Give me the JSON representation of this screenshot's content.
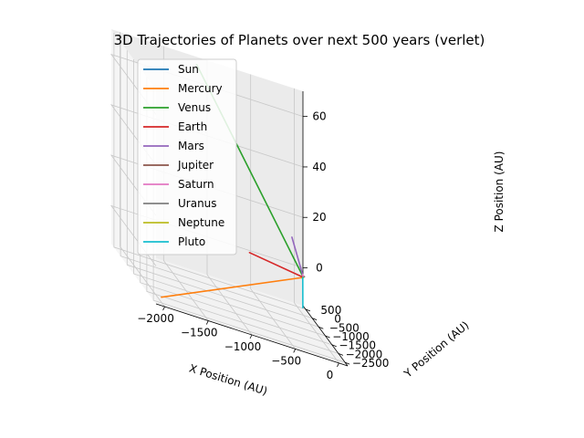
{
  "chart_data": {
    "type": "line",
    "projection": "3d",
    "title": "3D Trajectories of Planets over next 500 years (verlet)",
    "xlabel": "X Position (AU)",
    "ylabel": "Y Position (AU)",
    "zlabel": "Z Position (AU)",
    "xlim": [
      -2100,
      100
    ],
    "ylim": [
      -2700,
      700
    ],
    "zlim": [
      -15,
      70
    ],
    "xticks": [
      -2000,
      -1500,
      -1000,
      -500,
      0
    ],
    "xtick_labels": [
      "−2000",
      "−1500",
      "−1000",
      "−500",
      "0"
    ],
    "yticks": [
      -2500,
      -2000,
      -1500,
      -1000,
      -500,
      0,
      500
    ],
    "ytick_labels": [
      "−2500",
      "−2000",
      "−1500",
      "−1000",
      "−500",
      "0",
      "500"
    ],
    "zticks": [
      0,
      20,
      40,
      60
    ],
    "ztick_labels": [
      "0",
      "20",
      "40",
      "60"
    ],
    "grid": true,
    "legend_position": "upper-left",
    "series": [
      {
        "name": "Sun",
        "color": "#1f77b4",
        "points": [
          [
            0,
            0,
            0
          ],
          [
            0,
            0,
            0
          ]
        ]
      },
      {
        "name": "Mercury",
        "color": "#ff7f0e",
        "points": [
          [
            0,
            0,
            0
          ],
          [
            -2000,
            -2450,
            -13
          ]
        ]
      },
      {
        "name": "Venus",
        "color": "#2ca02c",
        "points": [
          [
            0,
            0,
            0
          ],
          [
            -1150,
            500,
            68
          ]
        ]
      },
      {
        "name": "Earth",
        "color": "#d62728",
        "points": [
          [
            0,
            0,
            0
          ],
          [
            -650,
            -200,
            4
          ]
        ]
      },
      {
        "name": "Mars",
        "color": "#9467bd",
        "points": [
          [
            0,
            0,
            0
          ],
          [
            -90,
            280,
            13
          ]
        ]
      },
      {
        "name": "Jupiter",
        "color": "#8c564b",
        "points": [
          [
            0,
            0,
            0
          ],
          [
            5,
            -5,
            0.5
          ]
        ]
      },
      {
        "name": "Saturn",
        "color": "#e377c2",
        "points": [
          [
            0,
            0,
            0
          ],
          [
            -8,
            10,
            1
          ]
        ]
      },
      {
        "name": "Uranus",
        "color": "#7f7f7f",
        "points": [
          [
            0,
            0,
            0
          ],
          [
            10,
            -15,
            0.5
          ]
        ]
      },
      {
        "name": "Neptune",
        "color": "#bcbd22",
        "points": [
          [
            0,
            0,
            0
          ],
          [
            -15,
            8,
            -0.5
          ]
        ]
      },
      {
        "name": "Pluto",
        "color": "#17becf",
        "points": [
          [
            -10,
            -12,
            0
          ],
          [
            -8,
            -10,
            -12
          ]
        ]
      }
    ]
  }
}
